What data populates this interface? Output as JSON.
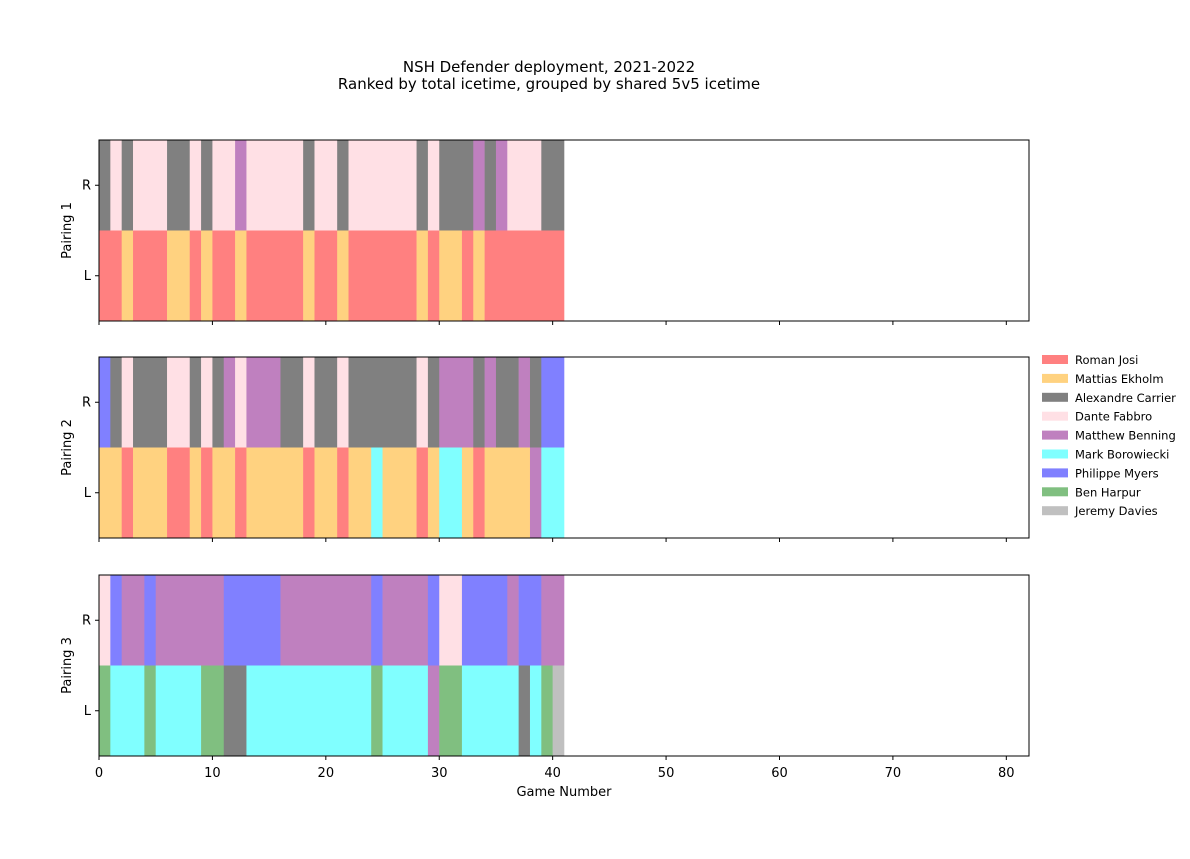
{
  "chart_data": {
    "type": "heatmap",
    "title": "NSH Defender deployment, 2021-2022",
    "subtitle": "Ranked by total icetime, grouped by shared 5v5 icetime",
    "xlabel": "Game Number",
    "xlim": [
      0,
      82
    ],
    "xticks": [
      0,
      10,
      20,
      30,
      40,
      50,
      60,
      70,
      80
    ],
    "row_labels": [
      "R",
      "L"
    ],
    "legend_position": "right",
    "players": [
      {
        "name": "Roman Josi",
        "color": "#ff8080"
      },
      {
        "name": "Mattias Ekholm",
        "color": "#ffd280"
      },
      {
        "name": "Alexandre Carrier",
        "color": "#808080"
      },
      {
        "name": "Dante Fabbro",
        "color": "#ffe0e5"
      },
      {
        "name": "Matthew Benning",
        "color": "#bf80bf"
      },
      {
        "name": "Mark Borowiecki",
        "color": "#80ffff"
      },
      {
        "name": "Philippe Myers",
        "color": "#8080ff"
      },
      {
        "name": "Ben Harpur",
        "color": "#80bf80"
      },
      {
        "name": "Jeremy Davies",
        "color": "#c0c0c0"
      }
    ],
    "pairings": [
      {
        "label": "Pairing 1",
        "R": [
          [
            0,
            1,
            "Alexandre Carrier"
          ],
          [
            1,
            2,
            "Dante Fabbro"
          ],
          [
            2,
            3,
            "Alexandre Carrier"
          ],
          [
            3,
            6,
            "Dante Fabbro"
          ],
          [
            6,
            8,
            "Alexandre Carrier"
          ],
          [
            8,
            9,
            "Dante Fabbro"
          ],
          [
            9,
            10,
            "Alexandre Carrier"
          ],
          [
            10,
            12,
            "Dante Fabbro"
          ],
          [
            12,
            13,
            "Matthew Benning"
          ],
          [
            13,
            18,
            "Dante Fabbro"
          ],
          [
            18,
            19,
            "Alexandre Carrier"
          ],
          [
            19,
            21,
            "Dante Fabbro"
          ],
          [
            21,
            22,
            "Alexandre Carrier"
          ],
          [
            22,
            28,
            "Dante Fabbro"
          ],
          [
            28,
            29,
            "Alexandre Carrier"
          ],
          [
            29,
            30,
            "Dante Fabbro"
          ],
          [
            30,
            33,
            "Alexandre Carrier"
          ],
          [
            33,
            34,
            "Matthew Benning"
          ],
          [
            34,
            35,
            "Alexandre Carrier"
          ],
          [
            35,
            36,
            "Matthew Benning"
          ],
          [
            36,
            39,
            "Dante Fabbro"
          ],
          [
            39,
            41,
            "Alexandre Carrier"
          ]
        ],
        "L": [
          [
            0,
            2,
            "Roman Josi"
          ],
          [
            2,
            3,
            "Mattias Ekholm"
          ],
          [
            3,
            6,
            "Roman Josi"
          ],
          [
            6,
            8,
            "Mattias Ekholm"
          ],
          [
            8,
            9,
            "Roman Josi"
          ],
          [
            9,
            10,
            "Mattias Ekholm"
          ],
          [
            10,
            12,
            "Roman Josi"
          ],
          [
            12,
            13,
            "Mattias Ekholm"
          ],
          [
            13,
            18,
            "Roman Josi"
          ],
          [
            18,
            19,
            "Mattias Ekholm"
          ],
          [
            19,
            21,
            "Roman Josi"
          ],
          [
            21,
            22,
            "Mattias Ekholm"
          ],
          [
            22,
            28,
            "Roman Josi"
          ],
          [
            28,
            29,
            "Mattias Ekholm"
          ],
          [
            29,
            30,
            "Roman Josi"
          ],
          [
            30,
            32,
            "Mattias Ekholm"
          ],
          [
            32,
            33,
            "Roman Josi"
          ],
          [
            33,
            34,
            "Mattias Ekholm"
          ],
          [
            34,
            41,
            "Roman Josi"
          ]
        ]
      },
      {
        "label": "Pairing 2",
        "R": [
          [
            0,
            1,
            "Philippe Myers"
          ],
          [
            1,
            2,
            "Alexandre Carrier"
          ],
          [
            2,
            3,
            "Dante Fabbro"
          ],
          [
            3,
            6,
            "Alexandre Carrier"
          ],
          [
            6,
            8,
            "Dante Fabbro"
          ],
          [
            8,
            9,
            "Alexandre Carrier"
          ],
          [
            9,
            10,
            "Dante Fabbro"
          ],
          [
            10,
            11,
            "Alexandre Carrier"
          ],
          [
            11,
            12,
            "Matthew Benning"
          ],
          [
            12,
            13,
            "Dante Fabbro"
          ],
          [
            13,
            16,
            "Matthew Benning"
          ],
          [
            16,
            18,
            "Alexandre Carrier"
          ],
          [
            18,
            19,
            "Dante Fabbro"
          ],
          [
            19,
            21,
            "Alexandre Carrier"
          ],
          [
            21,
            22,
            "Dante Fabbro"
          ],
          [
            22,
            28,
            "Alexandre Carrier"
          ],
          [
            28,
            29,
            "Dante Fabbro"
          ],
          [
            29,
            30,
            "Alexandre Carrier"
          ],
          [
            30,
            33,
            "Matthew Benning"
          ],
          [
            33,
            34,
            "Alexandre Carrier"
          ],
          [
            34,
            35,
            "Matthew Benning"
          ],
          [
            35,
            37,
            "Alexandre Carrier"
          ],
          [
            37,
            38,
            "Matthew Benning"
          ],
          [
            38,
            39,
            "Alexandre Carrier"
          ],
          [
            39,
            41,
            "Philippe Myers"
          ]
        ],
        "L": [
          [
            0,
            2,
            "Mattias Ekholm"
          ],
          [
            2,
            3,
            "Roman Josi"
          ],
          [
            3,
            6,
            "Mattias Ekholm"
          ],
          [
            6,
            8,
            "Roman Josi"
          ],
          [
            8,
            9,
            "Mattias Ekholm"
          ],
          [
            9,
            10,
            "Roman Josi"
          ],
          [
            10,
            12,
            "Mattias Ekholm"
          ],
          [
            12,
            13,
            "Roman Josi"
          ],
          [
            13,
            18,
            "Mattias Ekholm"
          ],
          [
            18,
            19,
            "Roman Josi"
          ],
          [
            19,
            21,
            "Mattias Ekholm"
          ],
          [
            21,
            22,
            "Roman Josi"
          ],
          [
            22,
            24,
            "Mattias Ekholm"
          ],
          [
            24,
            25,
            "Mark Borowiecki"
          ],
          [
            25,
            28,
            "Mattias Ekholm"
          ],
          [
            28,
            29,
            "Roman Josi"
          ],
          [
            29,
            30,
            "Mattias Ekholm"
          ],
          [
            30,
            32,
            "Mark Borowiecki"
          ],
          [
            32,
            33,
            "Mattias Ekholm"
          ],
          [
            33,
            34,
            "Roman Josi"
          ],
          [
            34,
            38,
            "Mattias Ekholm"
          ],
          [
            38,
            39,
            "Matthew Benning"
          ],
          [
            39,
            41,
            "Mark Borowiecki"
          ]
        ]
      },
      {
        "label": "Pairing 3",
        "R": [
          [
            0,
            1,
            "Dante Fabbro"
          ],
          [
            1,
            2,
            "Philippe Myers"
          ],
          [
            2,
            4,
            "Matthew Benning"
          ],
          [
            4,
            5,
            "Philippe Myers"
          ],
          [
            5,
            11,
            "Matthew Benning"
          ],
          [
            11,
            16,
            "Philippe Myers"
          ],
          [
            16,
            24,
            "Matthew Benning"
          ],
          [
            24,
            25,
            "Philippe Myers"
          ],
          [
            25,
            29,
            "Matthew Benning"
          ],
          [
            29,
            30,
            "Philippe Myers"
          ],
          [
            30,
            32,
            "Dante Fabbro"
          ],
          [
            32,
            36,
            "Philippe Myers"
          ],
          [
            36,
            37,
            "Matthew Benning"
          ],
          [
            37,
            39,
            "Philippe Myers"
          ],
          [
            39,
            41,
            "Matthew Benning"
          ]
        ],
        "L": [
          [
            0,
            1,
            "Ben Harpur"
          ],
          [
            1,
            4,
            "Mark Borowiecki"
          ],
          [
            4,
            5,
            "Ben Harpur"
          ],
          [
            5,
            9,
            "Mark Borowiecki"
          ],
          [
            9,
            11,
            "Ben Harpur"
          ],
          [
            11,
            13,
            "Alexandre Carrier"
          ],
          [
            13,
            24,
            "Mark Borowiecki"
          ],
          [
            24,
            25,
            "Ben Harpur"
          ],
          [
            25,
            29,
            "Mark Borowiecki"
          ],
          [
            29,
            30,
            "Matthew Benning"
          ],
          [
            30,
            32,
            "Ben Harpur"
          ],
          [
            32,
            37,
            "Mark Borowiecki"
          ],
          [
            37,
            38,
            "Alexandre Carrier"
          ],
          [
            38,
            39,
            "Mark Borowiecki"
          ],
          [
            39,
            40,
            "Ben Harpur"
          ],
          [
            40,
            41,
            "Jeremy Davies"
          ]
        ]
      }
    ]
  }
}
